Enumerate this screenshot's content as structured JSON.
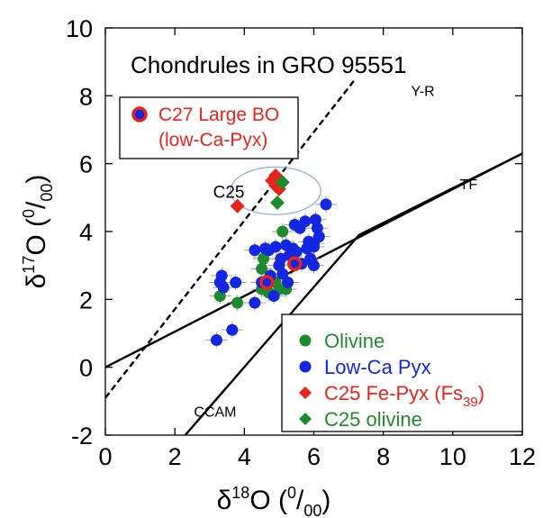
{
  "chart_data": {
    "type": "scatter",
    "title": "Chondrules in GRO 95551",
    "xlabel": {
      "main": "δ",
      "sup": "18",
      "mid": "O (",
      "sup2": "0",
      "end": "/",
      "sub": "00",
      "close": ")"
    },
    "ylabel": {
      "main": "δ",
      "sup": "17",
      "mid": "O (",
      "sup2": "0",
      "end": "/",
      "sub": "00",
      "close": ")"
    },
    "xlim": [
      0,
      12
    ],
    "ylim": [
      -2,
      10
    ],
    "xticks": [
      "0",
      "2",
      "4",
      "6",
      "8",
      "10",
      "12"
    ],
    "yticks": [
      "-2",
      "0",
      "2",
      "4",
      "6",
      "8",
      "10"
    ],
    "grid": false,
    "reference_lines": [
      {
        "name": "Y-R",
        "style": "dashed",
        "points": [
          [
            0,
            -0.9
          ],
          [
            7.2,
            8.5
          ]
        ]
      },
      {
        "name": "TF",
        "style": "solid",
        "points": [
          [
            0,
            0
          ],
          [
            12,
            6.3
          ]
        ]
      },
      {
        "name": "CCAM",
        "style": "solid",
        "points": [
          [
            2.3,
            -2
          ],
          [
            7.3,
            3.9
          ],
          [
            12,
            6.3
          ]
        ]
      }
    ],
    "annotations": [
      {
        "text": "Y-R",
        "at": [
          8.8,
          8.0
        ]
      },
      {
        "text": "TF",
        "at": [
          10.2,
          5.25
        ]
      },
      {
        "text": "CCAM",
        "at": [
          2.55,
          -1.45
        ]
      },
      {
        "text": "C25",
        "at": [
          3.1,
          5.0
        ]
      }
    ],
    "highlight_ellipse": {
      "center": [
        4.9,
        5.2
      ],
      "rx": 1.3,
      "ry": 0.7
    },
    "callout": {
      "line1": "C27 Large BO",
      "line2": "(low-Ca-Pyx)",
      "color": "#e8231c"
    },
    "legend": {
      "position": "bottom-right",
      "entries": [
        {
          "label": "Olivine",
          "marker": "circle",
          "color": "#1e8a2e"
        },
        {
          "label": "Low-Ca Pyx",
          "marker": "circle",
          "color": "#1427e0"
        },
        {
          "label": "C25 Fe-Pyx (Fs",
          "sub": "39",
          "close": ")",
          "marker": "diamond",
          "color": "#e8231c"
        },
        {
          "label": "C25 olivine",
          "marker": "diamond",
          "color": "#1e8a2e"
        }
      ]
    },
    "series": [
      {
        "name": "Olivine",
        "marker": "circle",
        "color": "#1e8a2e",
        "points": [
          [
            3.3,
            2.1
          ],
          [
            3.8,
            1.9
          ],
          [
            4.5,
            2.3
          ],
          [
            4.5,
            2.9
          ],
          [
            4.55,
            3.2
          ],
          [
            4.7,
            2.2
          ],
          [
            4.9,
            2.5
          ],
          [
            5.0,
            2.3
          ],
          [
            5.2,
            2.3
          ],
          [
            5.1,
            4.0
          ],
          [
            5.3,
            3.3
          ]
        ]
      },
      {
        "name": "Low-Ca Pyx",
        "marker": "circle",
        "color": "#1427e0",
        "points": [
          [
            3.2,
            0.8
          ],
          [
            3.65,
            1.1
          ],
          [
            3.3,
            2.5
          ],
          [
            3.35,
            2.7
          ],
          [
            3.4,
            2.35
          ],
          [
            3.75,
            2.5
          ],
          [
            4.3,
            1.9
          ],
          [
            4.3,
            3.45
          ],
          [
            4.5,
            2.5
          ],
          [
            4.6,
            3.5
          ],
          [
            4.7,
            3.45
          ],
          [
            4.75,
            2.7
          ],
          [
            4.85,
            2.1
          ],
          [
            4.9,
            3.55
          ],
          [
            5.0,
            3.0
          ],
          [
            5.05,
            3.2
          ],
          [
            5.1,
            2.75
          ],
          [
            5.2,
            3.6
          ],
          [
            5.25,
            2.5
          ],
          [
            5.3,
            3.3
          ],
          [
            5.4,
            3.5
          ],
          [
            5.45,
            4.2
          ],
          [
            5.5,
            3.4
          ],
          [
            5.6,
            4.1
          ],
          [
            5.65,
            3.05
          ],
          [
            5.75,
            4.3
          ],
          [
            5.8,
            3.5
          ],
          [
            5.85,
            3.7
          ],
          [
            5.9,
            3.2
          ],
          [
            6.0,
            3.55
          ],
          [
            6.05,
            4.35
          ],
          [
            6.0,
            3.0
          ],
          [
            6.1,
            4.1
          ],
          [
            6.15,
            3.85
          ],
          [
            6.35,
            4.8
          ],
          [
            6.0,
            3.65
          ]
        ]
      },
      {
        "name": "C27 Large BO",
        "marker": "circle",
        "color": "#1427e0",
        "points": [
          [
            4.65,
            2.5
          ],
          [
            5.45,
            3.05
          ]
        ]
      },
      {
        "name": "C25 Fe-Pyx",
        "marker": "diamond",
        "color": "#e8231c",
        "points": [
          [
            3.8,
            4.75
          ],
          [
            4.8,
            5.5
          ],
          [
            4.9,
            5.35
          ],
          [
            5.0,
            5.25
          ],
          [
            4.9,
            5.65
          ]
        ]
      },
      {
        "name": "C25 olivine",
        "marker": "diamond",
        "color": "#1e8a2e",
        "points": [
          [
            4.95,
            4.85
          ],
          [
            5.1,
            5.45
          ]
        ]
      }
    ]
  }
}
